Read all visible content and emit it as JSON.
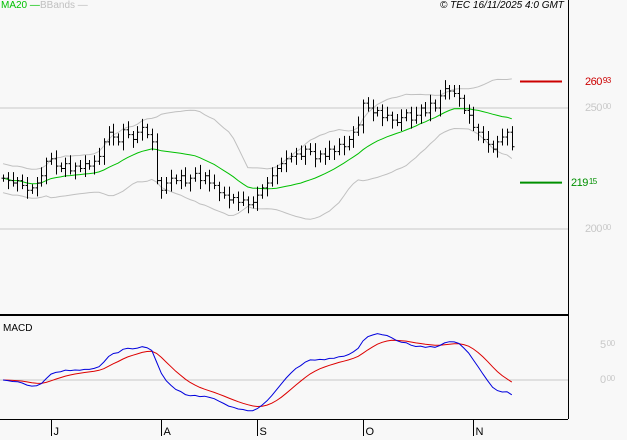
{
  "legend": {
    "ma_label": "MA20",
    "bb_label": "BBands",
    "ma_color": "#00c000",
    "bb_color": "#c0c0c0"
  },
  "copyright": "© TEC 16/11/2025 4:0 GMT",
  "chart_data": {
    "type": "ohlc",
    "price_axis": {
      "ticks": [
        {
          "value": 250,
          "int": "250",
          "dec": "00"
        },
        {
          "value": 200,
          "int": "200",
          "dec": "00"
        }
      ],
      "ylim": [
        185,
        290
      ]
    },
    "levels": [
      {
        "value": 260.93,
        "int": "260",
        "dec": "93",
        "color": "#cc0000"
      },
      {
        "value": 219.15,
        "int": "219",
        "dec": "15",
        "color": "#009000"
      }
    ],
    "month_labels": [
      {
        "label": "J",
        "index": 10
      },
      {
        "label": "A",
        "index": 33
      },
      {
        "label": "S",
        "index": 53
      },
      {
        "label": "O",
        "index": 75
      },
      {
        "label": "N",
        "index": 98
      }
    ],
    "close": [
      221,
      220,
      219,
      220,
      218,
      216,
      217,
      219,
      222,
      228,
      229,
      226,
      225,
      227,
      224,
      226,
      225,
      227,
      226,
      228,
      230,
      236,
      240,
      238,
      236,
      241,
      239,
      237,
      240,
      242,
      239,
      236,
      220,
      216,
      219,
      221,
      220,
      222,
      219,
      221,
      223,
      220,
      222,
      219,
      218,
      215,
      214,
      212,
      213,
      211,
      212,
      210,
      211,
      214,
      217,
      219,
      222,
      225,
      227,
      229,
      230,
      231,
      230,
      233,
      232,
      229,
      231,
      230,
      233,
      232,
      235,
      234,
      237,
      240,
      243,
      252,
      250,
      248,
      249,
      246,
      247,
      245,
      244,
      246,
      248,
      245,
      247,
      250,
      248,
      252,
      250,
      255,
      258,
      257,
      256,
      254,
      249,
      247,
      242,
      240,
      237,
      235,
      233,
      236,
      238,
      240,
      234
    ],
    "ma_period": 20,
    "macd": {
      "title": "MACD",
      "ticks": [
        {
          "value": 5,
          "int": "5",
          "dec": "00"
        },
        {
          "value": 0,
          "int": "0",
          "dec": "00"
        }
      ],
      "macd_color": "#0000dd",
      "signal_color": "#dd0000"
    }
  }
}
